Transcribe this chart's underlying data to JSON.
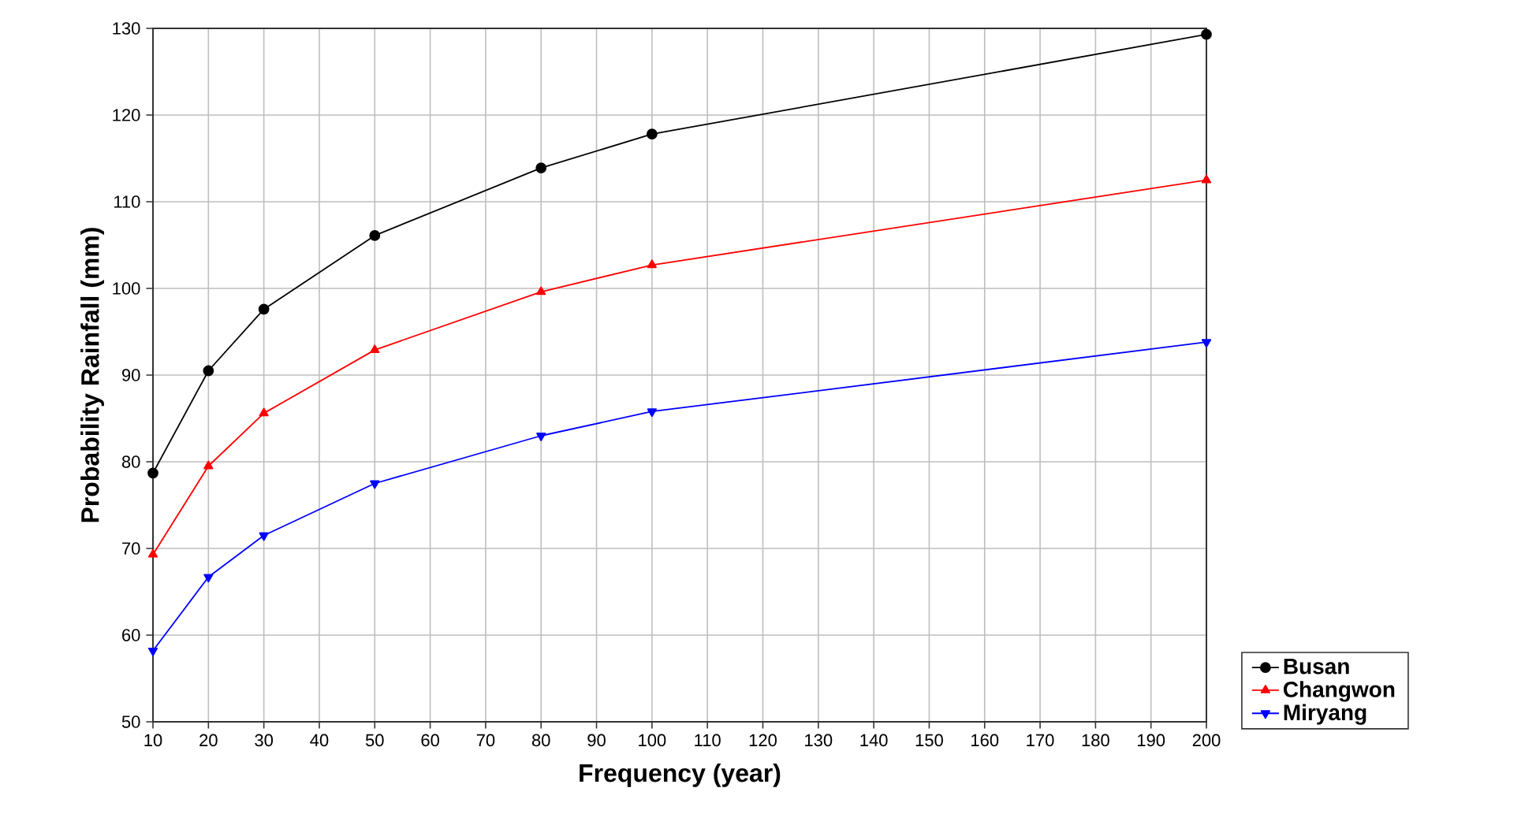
{
  "chart_data": {
    "type": "line",
    "xlabel": "Frequency (year)",
    "ylabel": "Probability Rainfall (mm)",
    "x": [
      10,
      20,
      30,
      50,
      80,
      100,
      200
    ],
    "series": [
      {
        "name": "Busan",
        "color": "#000000",
        "marker": "circle",
        "values": [
          78.7,
          90.5,
          97.6,
          106.1,
          113.9,
          117.8,
          129.3
        ]
      },
      {
        "name": "Changwon",
        "color": "#ff0000",
        "marker": "triangle",
        "values": [
          69.3,
          79.5,
          85.6,
          92.9,
          99.6,
          102.7,
          112.5
        ]
      },
      {
        "name": "Miryang",
        "color": "#0000ff",
        "marker": "triangle-down",
        "values": [
          58.2,
          66.7,
          71.5,
          77.5,
          83.0,
          85.8,
          93.8
        ]
      }
    ],
    "xlim": [
      10,
      200
    ],
    "xticks": [
      10,
      20,
      30,
      40,
      50,
      60,
      70,
      80,
      90,
      100,
      110,
      120,
      130,
      140,
      150,
      160,
      170,
      180,
      190,
      200
    ],
    "ylim": [
      50,
      130
    ],
    "yticks": [
      50,
      60,
      70,
      80,
      90,
      100,
      110,
      120,
      130
    ],
    "grid": true,
    "legend": "bottom right",
    "line_style": "solid"
  }
}
